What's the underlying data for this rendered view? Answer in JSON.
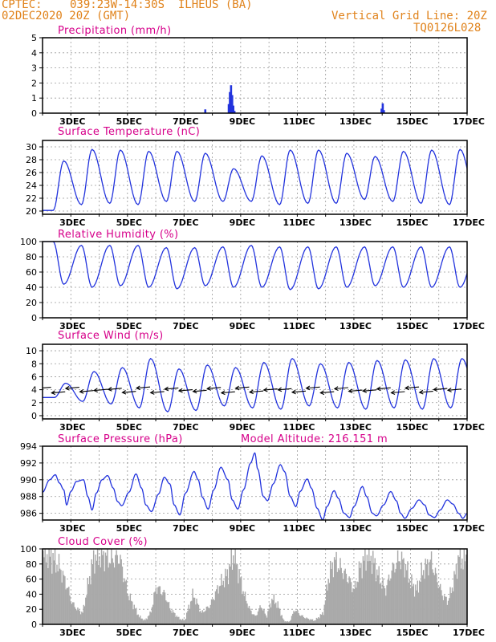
{
  "header": {
    "source": "CPTEC:",
    "location": "039:23W-14:30S  ILHEUS (BA)",
    "init_time": "02DEC2020 20Z (GMT)",
    "grid_note": "Vertical Grid Line: 20Z",
    "run_code": "TQ0126L028"
  },
  "colors": {
    "header": "#e0821a",
    "title": "#d6008a",
    "line": "#2233dd",
    "cloud_fill": "#a9a9a9",
    "grid": "#999999",
    "wind_arrow": "#000000"
  },
  "x_axis": {
    "start_day": 2.0,
    "end_day": 17.0,
    "labeled_days": [
      3,
      5,
      7,
      9,
      11,
      13,
      15,
      17
    ],
    "tick_labels": [
      "3DEC",
      "5DEC",
      "7DEC",
      "9DEC",
      "11DEC",
      "13DEC",
      "15DEC",
      "17DEC"
    ],
    "vertical_grid_hour": 20
  },
  "chart_data": [
    {
      "type": "bar",
      "title": "Precipitation (mm/h)",
      "ylim": [
        0,
        5
      ],
      "yticks": [
        0,
        1,
        2,
        3,
        4,
        5
      ],
      "baseline": 0.02,
      "events": [
        {
          "day": 7.75,
          "value": 0.25
        },
        {
          "day": 8.58,
          "value": 0.6
        },
        {
          "day": 8.62,
          "value": 1.4
        },
        {
          "day": 8.66,
          "value": 1.85
        },
        {
          "day": 8.7,
          "value": 1.2
        },
        {
          "day": 8.74,
          "value": 0.5
        },
        {
          "day": 8.78,
          "value": 0.15
        },
        {
          "day": 13.98,
          "value": 0.3
        },
        {
          "day": 14.02,
          "value": 0.65
        },
        {
          "day": 14.06,
          "value": 0.2
        }
      ]
    },
    {
      "type": "line",
      "title": "Surface Temperature (nC)",
      "ylim": [
        19.5,
        31
      ],
      "yticks": [
        20,
        22,
        24,
        26,
        28,
        30
      ],
      "diurnal": {
        "min_phase": 0.375,
        "max_phase": 0.75
      },
      "daily_min": [
        20.1,
        21.0,
        21.2,
        21.0,
        21.5,
        21.5,
        21.5,
        21.5,
        21.0,
        21.2,
        21.2,
        21.8,
        21.5,
        21.2,
        21.0,
        21.0
      ],
      "daily_max": [
        27.8,
        29.6,
        29.5,
        29.3,
        29.3,
        29.0,
        26.6,
        28.6,
        29.5,
        29.5,
        29.0,
        28.5,
        29.3,
        29.5,
        29.6,
        30.1
      ]
    },
    {
      "type": "line",
      "title": "Relative Humidity (%)",
      "ylim": [
        0,
        100
      ],
      "yticks": [
        0,
        20,
        40,
        60,
        80,
        100
      ],
      "diurnal": {
        "min_phase": 0.75,
        "max_phase": 0.375
      },
      "daily_max": [
        100,
        95,
        95,
        95,
        92,
        92,
        93,
        95,
        93,
        93,
        93,
        93,
        93,
        93,
        93,
        93
      ],
      "daily_min": [
        44,
        40,
        42,
        40,
        38,
        42,
        40,
        40,
        37,
        38,
        40,
        42,
        40,
        40,
        40,
        38
      ]
    },
    {
      "type": "line",
      "title": "Surface Wind (m/s)",
      "ylim": [
        -0.5,
        11
      ],
      "yticks": [
        0,
        2,
        4,
        6,
        8,
        10
      ],
      "diurnal": {
        "min_phase": 0.42,
        "max_phase": 0.82
      },
      "daily_max": [
        5.0,
        6.8,
        7.4,
        8.8,
        7.2,
        7.8,
        7.4,
        8.2,
        8.8,
        8.0,
        8.2,
        8.5,
        8.6,
        8.8,
        8.8,
        8.5
      ],
      "daily_min": [
        2.8,
        2.2,
        1.8,
        1.2,
        0.6,
        0.8,
        1.5,
        1.2,
        1.0,
        1.5,
        1.2,
        1.0,
        1.2,
        1.0,
        1.2,
        1.5
      ],
      "arrows": {
        "start_day": 2.3,
        "interval_days": 0.5,
        "direction_deg_from_east": 185,
        "anchor_value": 4.3
      }
    },
    {
      "type": "line",
      "title": "Surface Pressure (hPa)",
      "annotation": "Model Altitude: 216.151 m",
      "ylim": [
        985.2,
        994
      ],
      "yticks": [
        986,
        988,
        990,
        992,
        994
      ],
      "points": [
        [
          2.0,
          988.5
        ],
        [
          2.25,
          990.0
        ],
        [
          2.45,
          990.6
        ],
        [
          2.6,
          989.6
        ],
        [
          2.75,
          988.8
        ],
        [
          2.85,
          987.0
        ],
        [
          3.0,
          988.6
        ],
        [
          3.2,
          989.8
        ],
        [
          3.45,
          990.0
        ],
        [
          3.6,
          988.0
        ],
        [
          3.75,
          986.4
        ],
        [
          3.9,
          988.4
        ],
        [
          4.1,
          990.0
        ],
        [
          4.3,
          990.5
        ],
        [
          4.5,
          989.0
        ],
        [
          4.65,
          987.4
        ],
        [
          4.8,
          986.9
        ],
        [
          5.05,
          988.5
        ],
        [
          5.3,
          990.7
        ],
        [
          5.5,
          989.0
        ],
        [
          5.65,
          987.0
        ],
        [
          5.85,
          986.2
        ],
        [
          6.1,
          988.3
        ],
        [
          6.3,
          990.3
        ],
        [
          6.5,
          989.5
        ],
        [
          6.65,
          987.0
        ],
        [
          6.85,
          985.8
        ],
        [
          7.05,
          988.4
        ],
        [
          7.35,
          991.0
        ],
        [
          7.5,
          990.0
        ],
        [
          7.65,
          987.9
        ],
        [
          7.85,
          986.5
        ],
        [
          8.05,
          988.8
        ],
        [
          8.3,
          991.5
        ],
        [
          8.55,
          990.0
        ],
        [
          8.7,
          987.6
        ],
        [
          8.9,
          986.5
        ],
        [
          9.1,
          988.8
        ],
        [
          9.35,
          992.0
        ],
        [
          9.5,
          993.2
        ],
        [
          9.6,
          991.3
        ],
        [
          9.8,
          988.0
        ],
        [
          9.95,
          987.5
        ],
        [
          10.15,
          989.5
        ],
        [
          10.4,
          991.8
        ],
        [
          10.55,
          991.0
        ],
        [
          10.75,
          988.0
        ],
        [
          10.95,
          986.8
        ],
        [
          11.1,
          988.6
        ],
        [
          11.35,
          990.1
        ],
        [
          11.5,
          989.0
        ],
        [
          11.7,
          986.6
        ],
        [
          11.9,
          985.2
        ],
        [
          12.05,
          986.8
        ],
        [
          12.3,
          988.7
        ],
        [
          12.45,
          987.8
        ],
        [
          12.65,
          986.0
        ],
        [
          12.85,
          985.5
        ],
        [
          13.0,
          986.8
        ],
        [
          13.3,
          989.2
        ],
        [
          13.45,
          988.0
        ],
        [
          13.65,
          986.0
        ],
        [
          13.8,
          985.7
        ],
        [
          14.05,
          987.0
        ],
        [
          14.3,
          988.6
        ],
        [
          14.5,
          987.5
        ],
        [
          14.65,
          986.0
        ],
        [
          14.8,
          985.4
        ],
        [
          15.05,
          986.6
        ],
        [
          15.3,
          987.6
        ],
        [
          15.5,
          987.0
        ],
        [
          15.65,
          985.8
        ],
        [
          15.85,
          985.5
        ],
        [
          16.05,
          986.4
        ],
        [
          16.3,
          987.6
        ],
        [
          16.5,
          987.1
        ],
        [
          16.7,
          986.0
        ],
        [
          16.85,
          985.4
        ],
        [
          17.0,
          986.0
        ]
      ]
    },
    {
      "type": "area",
      "title": "Cloud Cover (%)",
      "ylim": [
        0,
        100
      ],
      "yticks": [
        0,
        20,
        40,
        60,
        80,
        100
      ],
      "points": [
        [
          2.0,
          95
        ],
        [
          2.3,
          90
        ],
        [
          2.6,
          75
        ],
        [
          2.9,
          45
        ],
        [
          3.0,
          30
        ],
        [
          3.2,
          20
        ],
        [
          3.4,
          15
        ],
        [
          3.6,
          55
        ],
        [
          3.8,
          88
        ],
        [
          4.1,
          92
        ],
        [
          4.4,
          85
        ],
        [
          4.7,
          90
        ],
        [
          5.0,
          40
        ],
        [
          5.2,
          25
        ],
        [
          5.4,
          10
        ],
        [
          5.6,
          5
        ],
        [
          5.8,
          15
        ],
        [
          6.0,
          50
        ],
        [
          6.3,
          40
        ],
        [
          6.5,
          20
        ],
        [
          6.8,
          8
        ],
        [
          7.0,
          5
        ],
        [
          7.3,
          40
        ],
        [
          7.6,
          15
        ],
        [
          7.9,
          25
        ],
        [
          8.2,
          50
        ],
        [
          8.5,
          65
        ],
        [
          8.75,
          95
        ],
        [
          8.9,
          70
        ],
        [
          9.1,
          40
        ],
        [
          9.3,
          20
        ],
        [
          9.5,
          10
        ],
        [
          9.7,
          25
        ],
        [
          9.9,
          10
        ],
        [
          10.1,
          35
        ],
        [
          10.3,
          25
        ],
        [
          10.5,
          5
        ],
        [
          10.7,
          3
        ],
        [
          10.9,
          20
        ],
        [
          11.1,
          12
        ],
        [
          11.3,
          8
        ],
        [
          11.6,
          5
        ],
        [
          11.9,
          15
        ],
        [
          12.1,
          65
        ],
        [
          12.3,
          85
        ],
        [
          12.5,
          75
        ],
        [
          12.8,
          60
        ],
        [
          13.0,
          45
        ],
        [
          13.2,
          75
        ],
        [
          13.5,
          95
        ],
        [
          13.7,
          80
        ],
        [
          13.9,
          60
        ],
        [
          14.1,
          45
        ],
        [
          14.3,
          70
        ],
        [
          14.6,
          88
        ],
        [
          14.8,
          78
        ],
        [
          15.0,
          55
        ],
        [
          15.2,
          45
        ],
        [
          15.4,
          70
        ],
        [
          15.7,
          85
        ],
        [
          15.9,
          62
        ],
        [
          16.1,
          40
        ],
        [
          16.3,
          30
        ],
        [
          16.5,
          55
        ],
        [
          16.7,
          92
        ],
        [
          16.85,
          85
        ],
        [
          17.0,
          90
        ]
      ]
    }
  ]
}
